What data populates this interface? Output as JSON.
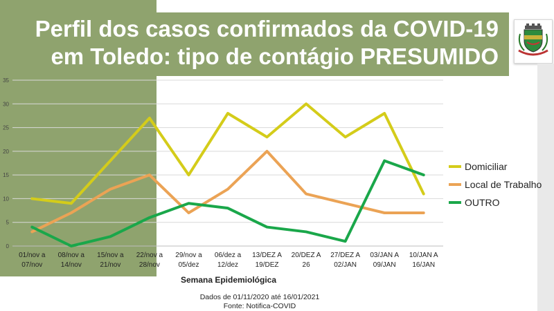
{
  "title": "Perfil dos casos confirmados da COVID-19\nem Toledo: tipo de contágio PRESUMIDO",
  "footer": {
    "line1": "Dados de 01/11/2020 até 16/01/2021",
    "line2": "Fonte: Notifica-COVID"
  },
  "logo": {
    "icon": "city-coat-of-arms-icon"
  },
  "colors": {
    "panel": "#8fa36e",
    "domiciliar": "#d4cc1a",
    "local_trabalho": "#eba355",
    "outro": "#1aa74a"
  },
  "chart_data": {
    "type": "line",
    "title": "Perfil dos casos confirmados da COVID-19 em Toledo: tipo de contágio PRESUMIDO",
    "xlabel": "Semana Epidemiológica",
    "ylabel": "",
    "ylim": [
      0,
      35
    ],
    "yticks": [
      0,
      5,
      10,
      15,
      20,
      25,
      30,
      35
    ],
    "grid": true,
    "legend_position": "right",
    "categories": [
      [
        "01/nov a",
        "07/nov"
      ],
      [
        "08/nov a",
        "14/nov"
      ],
      [
        "15/nov a",
        "21/nov"
      ],
      [
        "22/nov a",
        "28/nov"
      ],
      [
        "29/nov a",
        "05/dez"
      ],
      [
        "06/dez a",
        "12/dez"
      ],
      [
        "13/DEZ A",
        "19/DEZ"
      ],
      [
        "20/DEZ A",
        "26"
      ],
      [
        "27/DEZ A",
        "02/JAN"
      ],
      [
        "03/JAN A",
        "09/JAN"
      ],
      [
        "10/JAN A",
        "16/JAN"
      ]
    ],
    "series": [
      {
        "name": "Domiciliar",
        "color": "#d4cc1a",
        "values": [
          10,
          9,
          18,
          27,
          15,
          28,
          23,
          30,
          23,
          28,
          11
        ]
      },
      {
        "name": "Local de Trabalho",
        "color": "#eba355",
        "values": [
          3,
          7,
          12,
          15,
          7,
          12,
          20,
          11,
          9,
          7,
          7
        ]
      },
      {
        "name": "OUTRO",
        "color": "#1aa74a",
        "values": [
          4,
          0,
          2,
          6,
          9,
          8,
          4,
          3,
          1,
          18,
          15
        ]
      }
    ]
  }
}
